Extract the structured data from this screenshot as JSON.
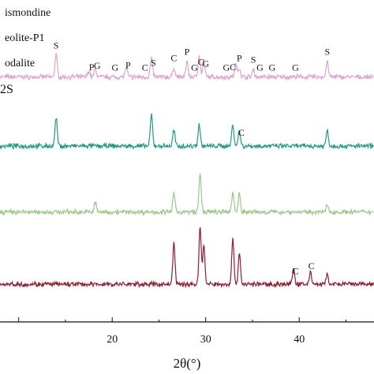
{
  "colors": {
    "axis": "#111111",
    "series": [
      "#d9a6cf",
      "#1f9c7f",
      "#9bc98d",
      "#8a1f33"
    ]
  },
  "legend": {
    "entries": [
      "ismondine",
      "eolite-P1",
      "odalite",
      "2S"
    ]
  },
  "chart_data": {
    "type": "line",
    "xlabel": "2θ(°)",
    "xlim": [
      8,
      48
    ],
    "x_ticks": [
      20,
      30,
      40
    ],
    "y_ticks_visible": false,
    "grid": false,
    "series": [
      {
        "offset": 0.78,
        "peaks": [
          {
            "x": 14.0,
            "h": 0.07
          },
          {
            "x": 17.5,
            "h": 0.02
          },
          {
            "x": 18.2,
            "h": 0.025
          },
          {
            "x": 21.5,
            "h": 0.03
          },
          {
            "x": 24.2,
            "h": 0.06
          },
          {
            "x": 26.6,
            "h": 0.03
          },
          {
            "x": 28.0,
            "h": 0.05
          },
          {
            "x": 29.3,
            "h": 0.07
          },
          {
            "x": 29.8,
            "h": 0.05
          },
          {
            "x": 33.2,
            "h": 0.04
          },
          {
            "x": 33.6,
            "h": 0.03
          },
          {
            "x": 35.1,
            "h": 0.025
          },
          {
            "x": 43.0,
            "h": 0.05
          }
        ],
        "annotations": [
          {
            "label": "S",
            "x": 14.0
          },
          {
            "label": "P",
            "x": 17.8
          },
          {
            "label": "G",
            "x": 18.4
          },
          {
            "label": "G",
            "x": 20.3
          },
          {
            "label": "P",
            "x": 21.7
          },
          {
            "label": "C",
            "x": 23.5
          },
          {
            "label": "S",
            "x": 24.4
          },
          {
            "label": "C",
            "x": 26.6
          },
          {
            "label": "P",
            "x": 28.0
          },
          {
            "label": "G",
            "x": 28.8
          },
          {
            "label": "C",
            "x": 29.5
          },
          {
            "label": "G",
            "x": 30.0
          },
          {
            "label": "G",
            "x": 32.2
          },
          {
            "label": "C",
            "x": 32.9
          },
          {
            "label": "P",
            "x": 33.6
          },
          {
            "label": "S",
            "x": 35.1
          },
          {
            "label": "G",
            "x": 35.8
          },
          {
            "label": "G",
            "x": 37.1
          },
          {
            "label": "G",
            "x": 39.6
          },
          {
            "label": "S",
            "x": 43.0
          }
        ]
      },
      {
        "offset": 0.56,
        "peaks": [
          {
            "x": 14.0,
            "h": 0.09
          },
          {
            "x": 24.2,
            "h": 0.1
          },
          {
            "x": 26.6,
            "h": 0.05
          },
          {
            "x": 29.3,
            "h": 0.07
          },
          {
            "x": 32.9,
            "h": 0.07
          },
          {
            "x": 33.6,
            "h": 0.05
          },
          {
            "x": 43.0,
            "h": 0.05
          }
        ],
        "annotations": [
          {
            "label": "C",
            "x": 33.8
          }
        ]
      },
      {
        "offset": 0.35,
        "peaks": [
          {
            "x": 18.2,
            "h": 0.03
          },
          {
            "x": 26.6,
            "h": 0.06
          },
          {
            "x": 29.4,
            "h": 0.12
          },
          {
            "x": 32.9,
            "h": 0.06
          },
          {
            "x": 33.6,
            "h": 0.06
          },
          {
            "x": 43.0,
            "h": 0.02
          }
        ],
        "annotations": []
      },
      {
        "offset": 0.12,
        "peaks": [
          {
            "x": 26.6,
            "h": 0.13
          },
          {
            "x": 29.4,
            "h": 0.18
          },
          {
            "x": 29.8,
            "h": 0.12
          },
          {
            "x": 32.9,
            "h": 0.14
          },
          {
            "x": 33.6,
            "h": 0.1
          },
          {
            "x": 39.4,
            "h": 0.05
          },
          {
            "x": 41.2,
            "h": 0.04
          },
          {
            "x": 43.0,
            "h": 0.03
          }
        ],
        "annotations": [
          {
            "label": "C",
            "x": 39.6
          },
          {
            "label": "C",
            "x": 41.3
          }
        ]
      }
    ]
  }
}
